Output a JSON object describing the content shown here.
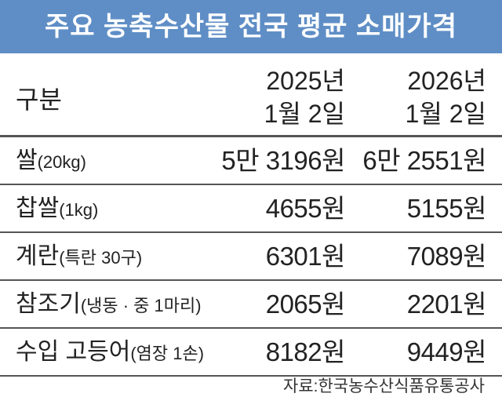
{
  "title": "주요 농축수산물 전국 평균 소매가격",
  "table": {
    "header": {
      "label": "구분",
      "columns": [
        [
          "2025년",
          "1월 2일"
        ],
        [
          "2026년",
          "1월 2일"
        ]
      ]
    },
    "rows": [
      {
        "name": "쌀",
        "unit": "(20kg)",
        "values": [
          "5만 3196원",
          "6만 2551원"
        ]
      },
      {
        "name": "찹쌀",
        "unit": "(1kg)",
        "values": [
          "4655원",
          "5155원"
        ]
      },
      {
        "name": "계란",
        "unit": "(특란 30구)",
        "values": [
          "6301원",
          "7089원"
        ]
      },
      {
        "name": "참조기",
        "unit": "(냉동 · 중 1마리)",
        "values": [
          "2065원",
          "2201원"
        ]
      },
      {
        "name": "수입 고등어",
        "unit": "(염장 1손)",
        "values": [
          "8182원",
          "9449원"
        ]
      }
    ]
  },
  "source": "자료:한국농수산식품유통공사"
}
